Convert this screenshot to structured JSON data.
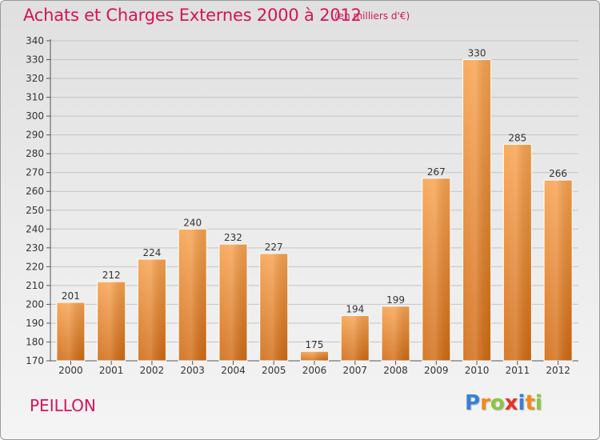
{
  "header": {
    "title": "Achats et Charges Externes 2000 à 2012",
    "subtitle": "(en milliers d'€)"
  },
  "footer": {
    "commune": "PEILLON",
    "logo_text": "Proxiti",
    "logo_letters": [
      {
        "char": "P",
        "color": "#3a7fd5"
      },
      {
        "char": "r",
        "color": "#f08a1c"
      },
      {
        "char": "o",
        "color": "#8cc63f"
      },
      {
        "char": "x",
        "color": "#e8322a"
      },
      {
        "char": "i",
        "color": "#3a7fd5"
      },
      {
        "char": "t",
        "color": "#f08a1c"
      },
      {
        "char": "i",
        "color": "#8cc63f"
      }
    ]
  },
  "colors": {
    "bar_top": "#f7a24f",
    "bar_bottom": "#d06a12",
    "accent": "#d4145a"
  },
  "chart_data": {
    "type": "bar",
    "title": "Achats et Charges Externes 2000 à 2012",
    "subtitle": "(en milliers d'€)",
    "xlabel": "",
    "ylabel": "",
    "categories": [
      "2000",
      "2001",
      "2002",
      "2003",
      "2004",
      "2005",
      "2006",
      "2007",
      "2008",
      "2009",
      "2010",
      "2011",
      "2012"
    ],
    "values": [
      201,
      212,
      224,
      240,
      232,
      227,
      175,
      194,
      199,
      267,
      330,
      285,
      266
    ],
    "ylim": [
      170,
      340
    ],
    "yticks": [
      170,
      180,
      190,
      200,
      210,
      220,
      230,
      240,
      250,
      260,
      270,
      280,
      290,
      300,
      310,
      320,
      330,
      340
    ],
    "grid": true,
    "legend": "none"
  }
}
